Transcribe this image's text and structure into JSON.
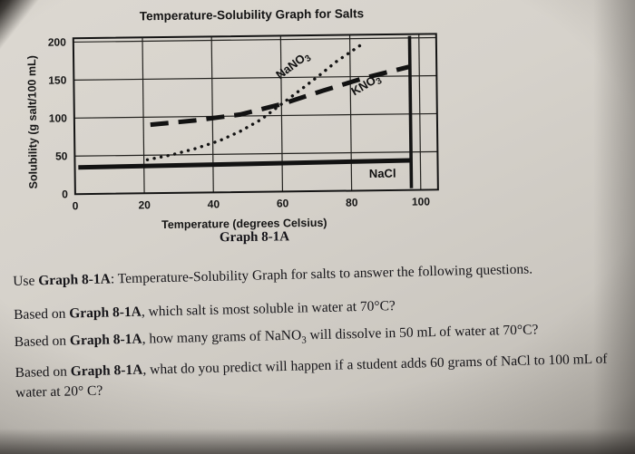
{
  "figure": {
    "caption": "Graph 8-1A"
  },
  "chart_data": {
    "type": "line",
    "title": "Temperature-Solubility Graph for Salts",
    "xlabel": "Temperature (degrees Celsius)",
    "ylabel": "Solubility (g salt/100 mL)",
    "xlim": [
      0,
      105
    ],
    "ylim": [
      0,
      205
    ],
    "xticks": [
      0,
      20,
      40,
      60,
      80,
      100
    ],
    "yticks": [
      0,
      50,
      100,
      150,
      200
    ],
    "grid": true,
    "legend_position": "inline-labels",
    "frame_line_x": 97.3,
    "series": [
      {
        "name": "NaNO3",
        "label_main": "NaNO",
        "label_sub": "3",
        "style": "dotted",
        "points": [
          [
            21,
            44
          ],
          [
            28,
            50
          ],
          [
            35,
            58
          ],
          [
            42,
            68
          ],
          [
            48,
            80
          ],
          [
            54,
            95
          ],
          [
            60,
            115
          ],
          [
            66,
            135
          ],
          [
            71,
            152
          ],
          [
            76,
            170
          ],
          [
            81,
            185
          ],
          [
            84,
            194
          ]
        ],
        "label_x": 64,
        "label_y": 162,
        "label_angle": -36
      },
      {
        "name": "KNO3",
        "label_main": "KNO",
        "label_sub": "3",
        "style": "dashed",
        "points": [
          [
            22,
            90
          ],
          [
            35,
            95
          ],
          [
            48,
            102
          ],
          [
            60,
            115
          ],
          [
            72,
            132
          ],
          [
            84,
            148
          ],
          [
            97,
            162
          ]
        ],
        "label_x": 85,
        "label_y": 135,
        "label_angle": -30
      },
      {
        "name": "NaCl",
        "label_main": "NaCl",
        "label_sub": "",
        "style": "solid",
        "points": [
          [
            1,
            35
          ],
          [
            50,
            37
          ],
          [
            97,
            39
          ]
        ],
        "label_x": 89,
        "label_y": 17,
        "label_angle": 0
      }
    ]
  },
  "questions": [
    {
      "segments": [
        {
          "text": "Use "
        },
        {
          "text": "Graph 8-1A",
          "bold": true
        },
        {
          "text": ": Temperature-Solubility Graph for salts to answer the following questions."
        }
      ]
    },
    {
      "segments": [
        {
          "text": "Based on "
        },
        {
          "text": "Graph 8-1A",
          "bold": true
        },
        {
          "text": ", which salt is most soluble in water at 70°C?"
        }
      ]
    },
    {
      "segments": [
        {
          "text": "Based on "
        },
        {
          "text": "Graph 8-1A",
          "bold": true
        },
        {
          "text": ", how many grams of NaNO"
        },
        {
          "text": "3",
          "sub": true
        },
        {
          "text": " will dissolve in 50 mL of water at 70°C?"
        }
      ]
    },
    {
      "segments": [
        {
          "text": "Based on "
        },
        {
          "text": "Graph 8-1A",
          "bold": true
        },
        {
          "text": ", what do you predict will happen if a student adds 60 grams of NaCl to 100 mL of water at 20° C?"
        }
      ]
    }
  ]
}
